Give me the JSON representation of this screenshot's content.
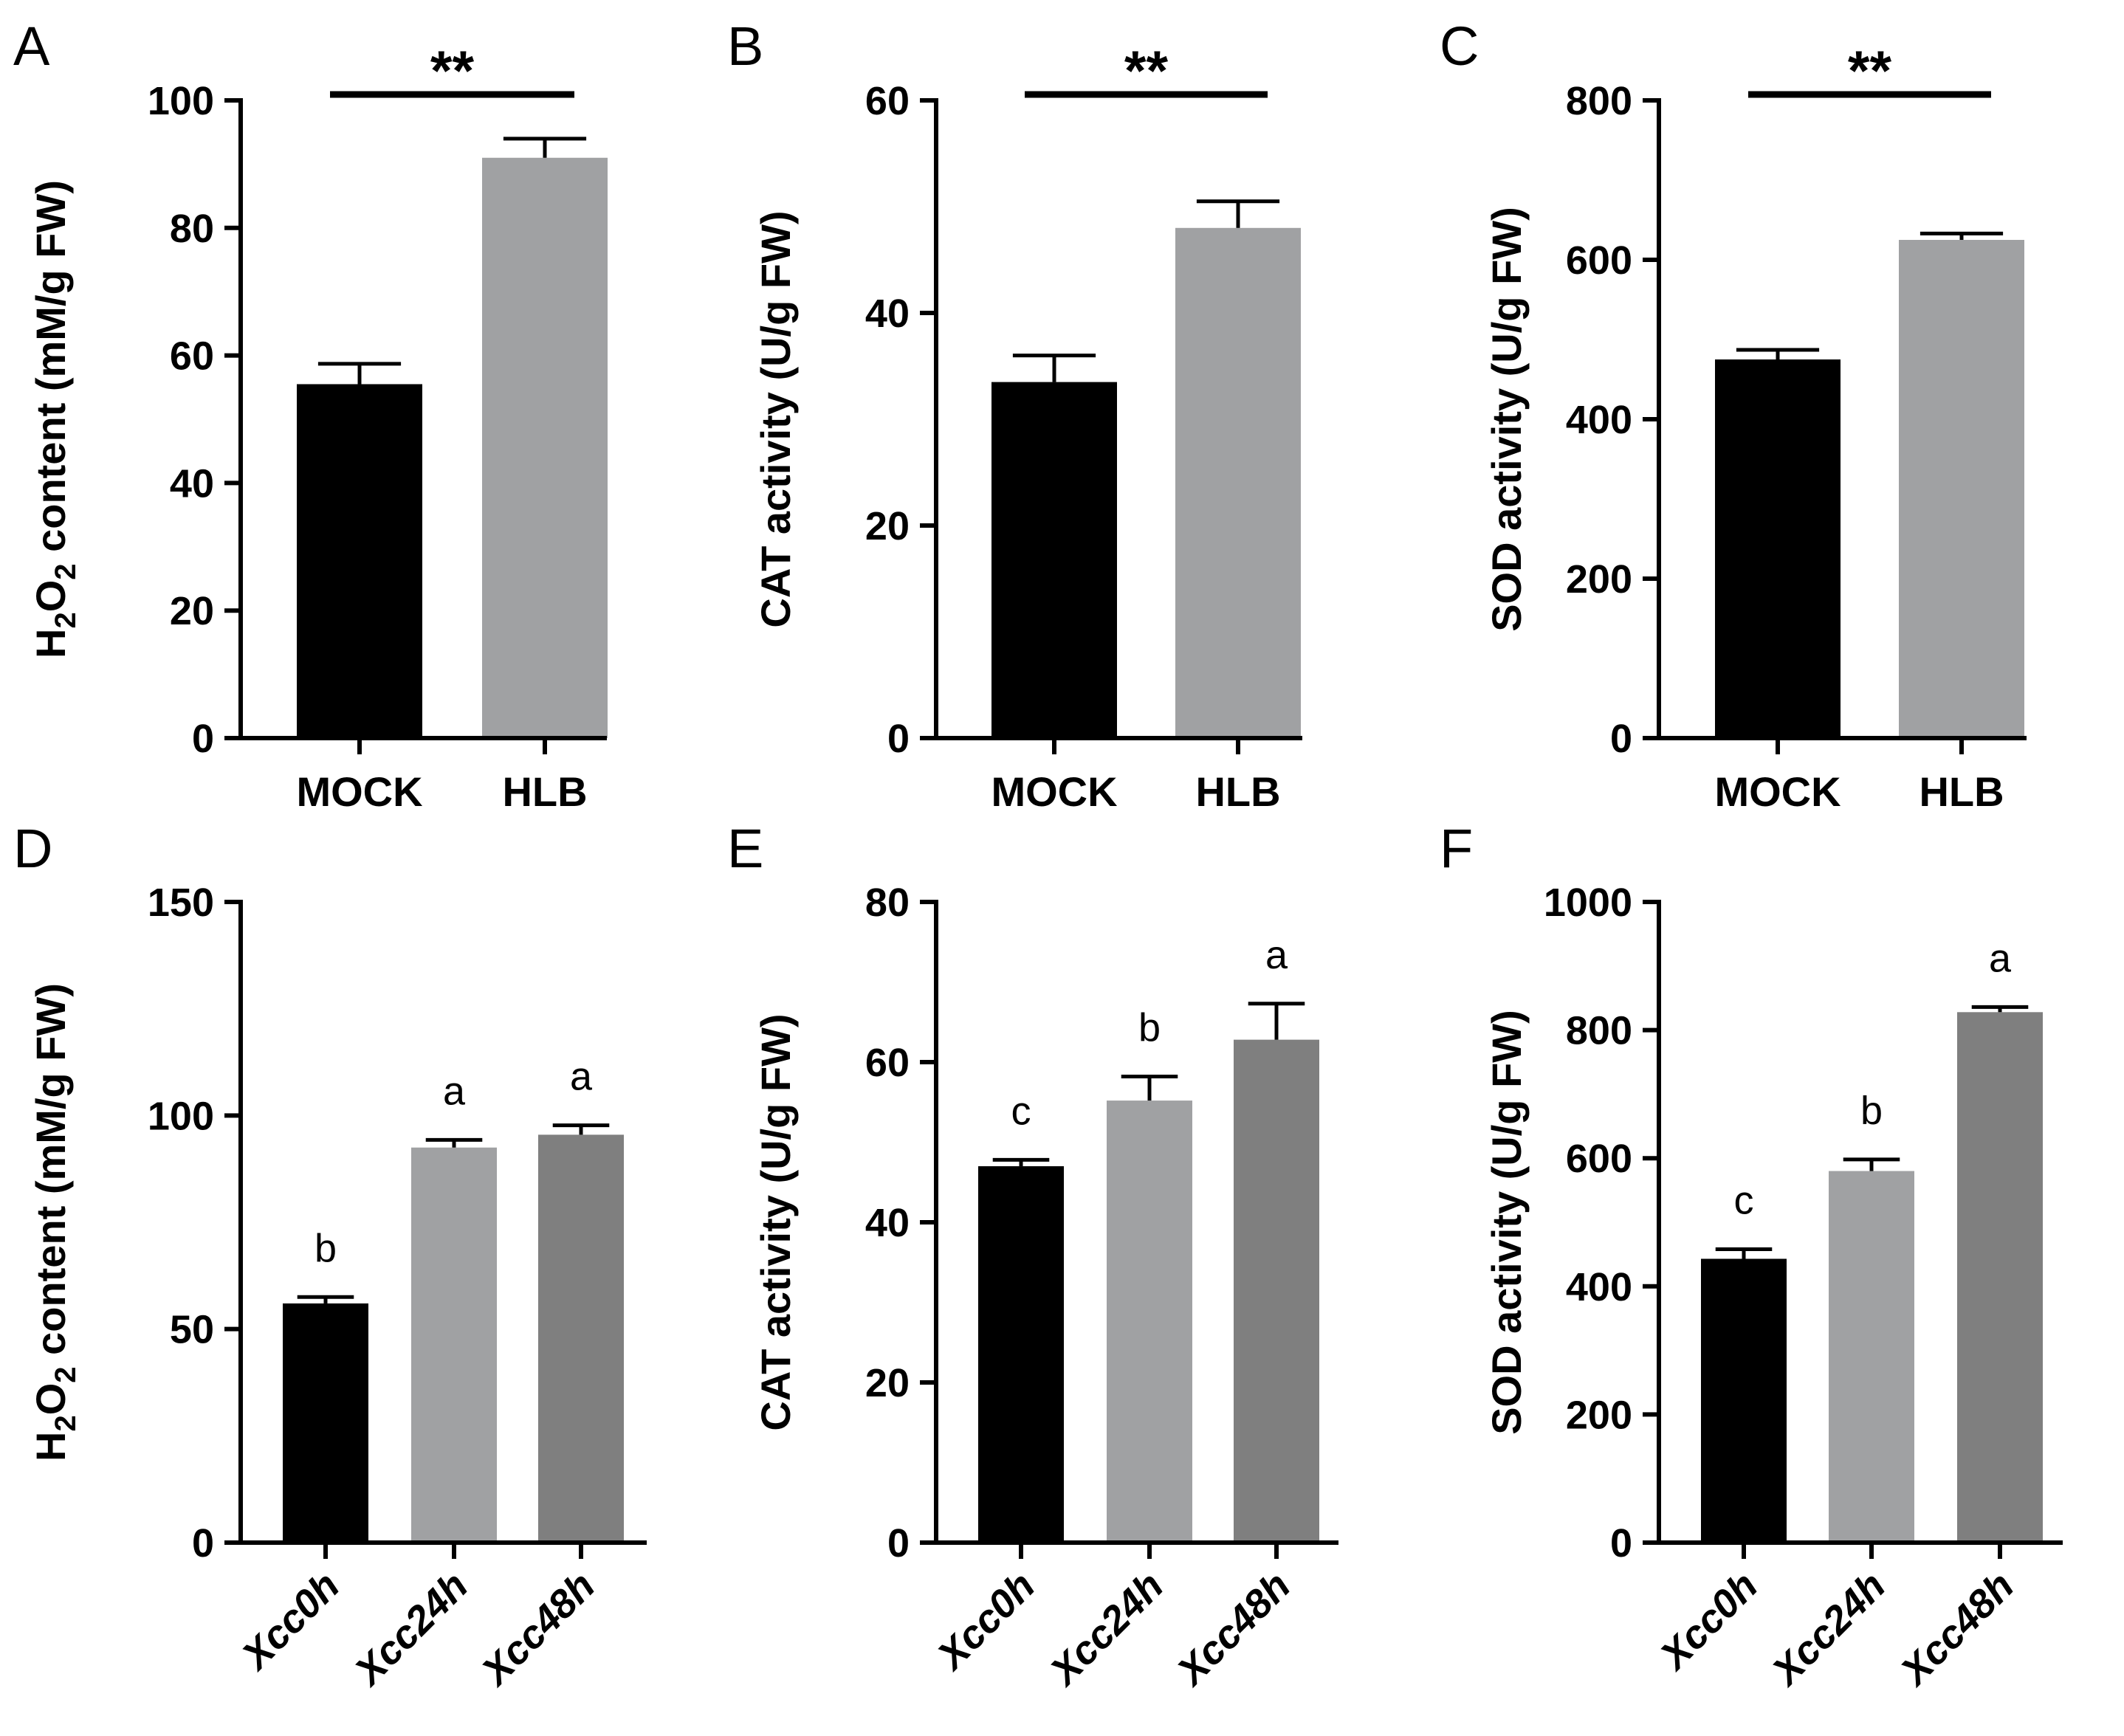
{
  "colors": {
    "black": "#000000",
    "light_gray": "#A0A1A3",
    "dark_gray": "#7F7F7F",
    "axis": "#000000"
  },
  "chart_data": [
    {
      "panel": "A",
      "type": "bar",
      "ylabel": {
        "pre": "H",
        "sub1": "2",
        "mid": "O",
        "sub2": "2",
        "post": " content (mM/g FW)"
      },
      "categories": [
        "MOCK",
        "HLB"
      ],
      "italic_categories": false,
      "values": [
        55.5,
        91
      ],
      "errors": [
        3.2,
        3
      ],
      "colors": [
        "#000000",
        "#A0A1A3"
      ],
      "ylim": [
        0,
        100
      ],
      "yticks": [
        0,
        20,
        40,
        60,
        80,
        100
      ],
      "ytick_labels": [
        "0",
        "20",
        "40",
        "60",
        "80",
        "100"
      ],
      "significance": {
        "type": "bracket",
        "label": "**"
      }
    },
    {
      "panel": "B",
      "type": "bar",
      "ylabel": {
        "text": "CAT activity (U/g FW)"
      },
      "categories": [
        "MOCK",
        "HLB"
      ],
      "italic_categories": false,
      "values": [
        33.5,
        48
      ],
      "errors": [
        2.5,
        2.5
      ],
      "colors": [
        "#000000",
        "#A0A1A3"
      ],
      "ylim": [
        0,
        60
      ],
      "yticks": [
        0,
        20,
        40,
        60
      ],
      "ytick_labels": [
        "0",
        "20",
        "40",
        "60"
      ],
      "significance": {
        "type": "bracket",
        "label": "**"
      }
    },
    {
      "panel": "C",
      "type": "bar",
      "ylabel": {
        "text": "SOD activity (U/g FW)"
      },
      "categories": [
        "MOCK",
        "HLB"
      ],
      "italic_categories": false,
      "values": [
        475,
        625
      ],
      "errors": [
        12,
        8
      ],
      "colors": [
        "#000000",
        "#A0A1A3"
      ],
      "ylim": [
        0,
        800
      ],
      "yticks": [
        0,
        200,
        400,
        600,
        800
      ],
      "ytick_labels": [
        "0",
        "200",
        "400",
        "600",
        "800"
      ],
      "significance": {
        "type": "bracket",
        "label": "**"
      }
    },
    {
      "panel": "D",
      "type": "bar",
      "ylabel": {
        "pre": "H",
        "sub1": "2",
        "mid": "O",
        "sub2": "2",
        "post": " content (mM/g FW)"
      },
      "categories": [
        "Xcc0h",
        "Xcc24h",
        "Xcc48h"
      ],
      "italic_categories": true,
      "values": [
        56,
        92.5,
        95.5
      ],
      "errors": [
        1.5,
        1.8,
        2.2
      ],
      "colors": [
        "#000000",
        "#A0A1A3",
        "#7F7F7F"
      ],
      "ylim": [
        0,
        150
      ],
      "yticks": [
        0,
        50,
        100,
        150
      ],
      "ytick_labels": [
        "0",
        "50",
        "100",
        "150"
      ],
      "significance": {
        "type": "letters",
        "labels": [
          "b",
          "a",
          "a"
        ]
      }
    },
    {
      "panel": "E",
      "type": "bar",
      "ylabel": {
        "text": "CAT activity (U/g FW)"
      },
      "categories": [
        "Xcc0h",
        "Xcc24h",
        "Xcc48h"
      ],
      "italic_categories": true,
      "values": [
        47,
        55.2,
        62.8
      ],
      "errors": [
        0.8,
        3,
        4.5
      ],
      "colors": [
        "#000000",
        "#A0A1A3",
        "#7F7F7F"
      ],
      "ylim": [
        0,
        80
      ],
      "yticks": [
        0,
        20,
        40,
        60,
        80
      ],
      "ytick_labels": [
        "0",
        "20",
        "40",
        "60",
        "80"
      ],
      "significance": {
        "type": "letters",
        "labels": [
          "c",
          "b",
          "a"
        ]
      }
    },
    {
      "panel": "F",
      "type": "bar",
      "ylabel": {
        "text": "SOD activity (U/g FW)"
      },
      "categories": [
        "Xcc0h",
        "Xcc24h",
        "Xcc48h"
      ],
      "italic_categories": true,
      "values": [
        443,
        580,
        828
      ],
      "errors": [
        15,
        18,
        8
      ],
      "colors": [
        "#000000",
        "#A0A1A3",
        "#7F7F7F"
      ],
      "ylim": [
        0,
        1000
      ],
      "yticks": [
        0,
        200,
        400,
        600,
        800,
        1000
      ],
      "ytick_labels": [
        "0",
        "200",
        "400",
        "600",
        "800",
        "1000"
      ],
      "significance": {
        "type": "letters",
        "labels": [
          "c",
          "b",
          "a"
        ]
      }
    }
  ]
}
